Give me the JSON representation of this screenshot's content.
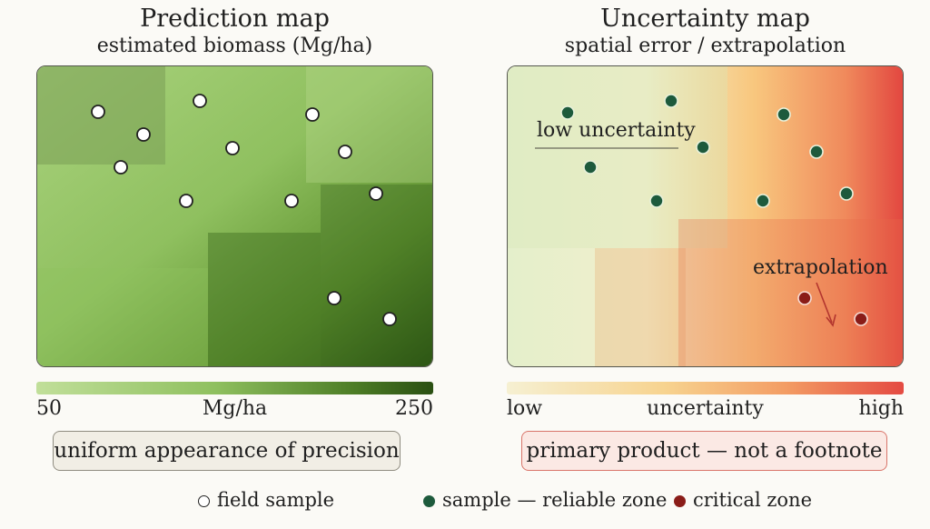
{
  "left": {
    "title": "Prediction map",
    "subtitle": "estimated biomass (Mg/ha)",
    "scale_min": "50",
    "scale_unit": "Mg/ha",
    "scale_max": "250",
    "note": "uniform appearance of precision"
  },
  "right": {
    "title": "Uncertainty map",
    "subtitle": "spatial error / extrapolation",
    "annotation_low": "low uncertainty",
    "annotation_extrapolation": "extrapolation",
    "scale_min": "low",
    "scale_unit": "uncertainty",
    "scale_max": "high",
    "note": "primary product — not a footnote"
  },
  "legend": {
    "field_sample": "field sample",
    "reliable": "sample — reliable zone",
    "critical": "critical zone"
  },
  "colors": {
    "green_light": "#b3d68a",
    "green_dark": "#2f5a16",
    "unc_low": "#f3efcc",
    "unc_mid": "#f6c27a",
    "unc_high": "#e44a42",
    "reliable_dot": "#1d5a3c",
    "critical_dot": "#8a1c18",
    "arrow": "#b3352e"
  }
}
